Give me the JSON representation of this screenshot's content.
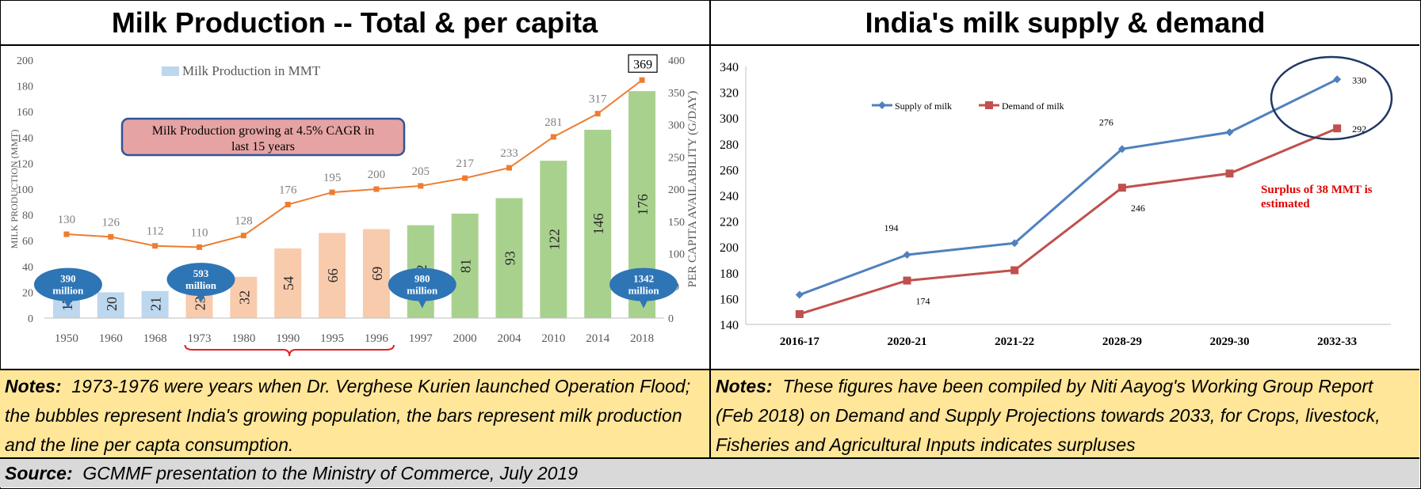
{
  "left_panel": {
    "title": "Milk Production -- Total & per capita",
    "notes_label": "Notes:",
    "notes_text": "1973-1976 were years when Dr. Verghese Kurien launched Operation Flood; the bubbles represent India's growing population, the bars represent milk production and the line per capta consumption."
  },
  "right_panel": {
    "title": "India's milk supply & demand",
    "notes_label": "Notes:",
    "notes_text": "These figures have been compiled by Niti Aayog's Working Group Report (Feb 2018) on Demand and Supply Projections towards 2033, for Crops, livestock, Fisheries and Agricultural Inputs indicates  surpluses"
  },
  "source": {
    "label": "Source:",
    "text": "GCMMF presentation to the Ministry of Commerce, July 2019"
  },
  "chart_data": [
    {
      "type": "bar",
      "categories": [
        "1950",
        "1960",
        "1968",
        "1973",
        "1980",
        "1990",
        "1995",
        "1996",
        "1997",
        "2000",
        "2004",
        "2010",
        "2014",
        "2018"
      ],
      "series": [
        {
          "name": "Milk Production in MMT",
          "values": [
            17,
            20,
            21,
            23,
            32,
            54,
            66,
            69,
            72,
            81,
            93,
            122,
            146,
            176
          ],
          "axis": "left"
        },
        {
          "values": [
            130,
            126,
            112,
            110,
            128,
            176,
            195,
            200,
            205,
            217,
            233,
            281,
            317,
            369
          ],
          "axis": "right",
          "type": "line"
        }
      ],
      "bar_colors": [
        "#BDD7EE",
        "#BDD7EE",
        "#BDD7EE",
        "#F8CBAD",
        "#F8CBAD",
        "#F8CBAD",
        "#F8CBAD",
        "#F8CBAD",
        "#A9D18E",
        "#A9D18E",
        "#A9D18E",
        "#A9D18E",
        "#A9D18E",
        "#A9D18E"
      ],
      "line_color": "#ED7D31",
      "ylabel": "MILK PRODUCTION (MMT)",
      "y2label": "PER CAPITA AVAILABILITY (G/DAY)",
      "ylim": [
        0,
        200
      ],
      "y2lim": [
        0,
        400
      ],
      "yticks": [
        0,
        20,
        40,
        60,
        80,
        100,
        120,
        140,
        160,
        180,
        200
      ],
      "y2ticks": [
        0,
        50,
        100,
        150,
        200,
        250,
        300,
        350,
        400
      ],
      "legend": "top-left",
      "annotation": "Milk Production growing at 4.5% CAGR in last 15 years",
      "bubbles": [
        {
          "category": "1950",
          "label": "390 million"
        },
        {
          "category": "1973",
          "label": "593 million"
        },
        {
          "category": "1997",
          "label": "980 million"
        },
        {
          "category": "2018",
          "label": "1342 million"
        }
      ],
      "highlighted_value": "369"
    },
    {
      "type": "line",
      "categories": [
        "2016-17",
        "2020-21",
        "2021-22",
        "2028-29",
        "2029-30",
        "2032-33"
      ],
      "series": [
        {
          "name": "Supply of milk",
          "values": [
            163,
            194,
            203,
            276,
            289,
            330
          ],
          "color": "#4F81BD"
        },
        {
          "name": "Demand of milk",
          "values": [
            148,
            174,
            182,
            246,
            257,
            292
          ],
          "color": "#C0504D"
        }
      ],
      "data_labels": [
        {
          "series": 0,
          "index": 1,
          "text": "194"
        },
        {
          "series": 0,
          "index": 3,
          "text": "276"
        },
        {
          "series": 0,
          "index": 5,
          "text": "330"
        },
        {
          "series": 1,
          "index": 1,
          "text": "174"
        },
        {
          "series": 1,
          "index": 3,
          "text": "246"
        },
        {
          "series": 1,
          "index": 5,
          "text": "292"
        }
      ],
      "ylim": [
        140,
        340
      ],
      "yticks": [
        140,
        160,
        180,
        200,
        220,
        240,
        260,
        280,
        300,
        320,
        340
      ],
      "legend": "top-left",
      "annotation": "Surplus of 38 MMT is estimated",
      "annotation_color": "#E00000"
    }
  ]
}
